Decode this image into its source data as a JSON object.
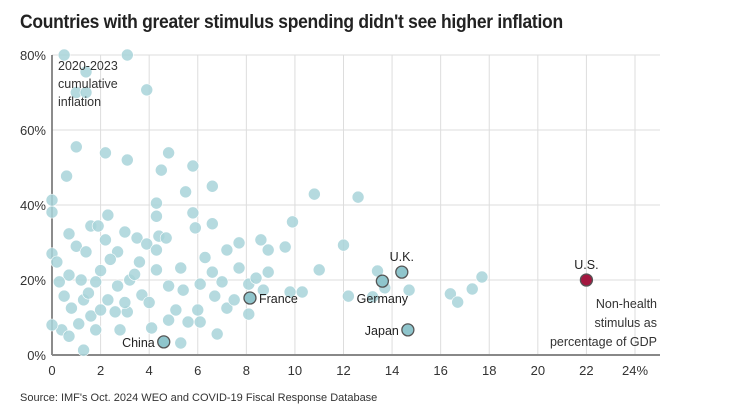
{
  "chart_data": {
    "type": "scatter",
    "title": "Countries with greater stimulus spending didn't see higher inflation",
    "source": "Source: IMF's Oct. 2024 WEO and COVID-19 Fiscal Response Database",
    "xlabel": "Non-health stimulus as percentage of GDP",
    "xlabel_lines": [
      "Non-health",
      "stimulus as",
      "percentage of GDP"
    ],
    "ylabel": "2020-2023 cumulative inflation",
    "ylabel_lines": [
      "2020-2023",
      "cumulative",
      "inflation"
    ],
    "xlim": [
      0,
      24
    ],
    "ylim": [
      0,
      80
    ],
    "xticks": [
      0,
      2,
      4,
      6,
      8,
      10,
      12,
      14,
      16,
      18,
      20,
      22,
      24
    ],
    "xtick_labels": [
      "0",
      "2",
      "4",
      "6",
      "8",
      "10",
      "12",
      "14",
      "16",
      "18",
      "20",
      "22",
      "24%"
    ],
    "yticks": [
      0,
      20,
      40,
      60,
      80
    ],
    "ytick_labels": [
      "0%",
      "20%",
      "40%",
      "60%",
      "80%"
    ],
    "grid": true,
    "colors": {
      "point": "#a8d4d9",
      "highlight": "#8fc5cc",
      "us": "#a3173f",
      "outline": "#555555",
      "grid": "#dddddd",
      "axis": "#888888"
    },
    "points": [
      [
        0.5,
        80
      ],
      [
        3.1,
        80
      ],
      [
        1.4,
        75.5
      ],
      [
        1.0,
        70
      ],
      [
        1.4,
        70
      ],
      [
        3.9,
        70.7
      ],
      [
        1.0,
        55.5
      ],
      [
        2.2,
        53.9
      ],
      [
        3.1,
        52
      ],
      [
        4.8,
        53.9
      ],
      [
        5.8,
        50.4
      ],
      [
        4.5,
        49.3
      ],
      [
        0.6,
        47.7
      ],
      [
        0,
        41.3
      ],
      [
        0,
        38.1
      ],
      [
        5.5,
        43.5
      ],
      [
        6.6,
        45
      ],
      [
        10.8,
        42.9
      ],
      [
        12.6,
        42.1
      ],
      [
        4.3,
        40.5
      ],
      [
        5.8,
        37.9
      ],
      [
        6.6,
        35
      ],
      [
        4.3,
        37
      ],
      [
        5.9,
        33.9
      ],
      [
        9.9,
        35.5
      ],
      [
        8.6,
        30.7
      ],
      [
        7.2,
        28
      ],
      [
        8.9,
        28
      ],
      [
        7.7,
        29.9
      ],
      [
        9.6,
        28.8
      ],
      [
        12,
        29.3
      ],
      [
        11,
        22.7
      ],
      [
        0,
        27
      ],
      [
        0.2,
        24.8
      ],
      [
        0.7,
        32.3
      ],
      [
        1,
        29
      ],
      [
        1.4,
        27.5
      ],
      [
        1.6,
        34.4
      ],
      [
        1.9,
        34.4
      ],
      [
        2.3,
        37.3
      ],
      [
        2.2,
        30.7
      ],
      [
        2.7,
        27.5
      ],
      [
        3,
        32.8
      ],
      [
        3.5,
        31.2
      ],
      [
        3.9,
        29.6
      ],
      [
        4.3,
        28
      ],
      [
        4.4,
        31.7
      ],
      [
        4.7,
        31.2
      ],
      [
        3.6,
        24.8
      ],
      [
        3.2,
        20
      ],
      [
        2.7,
        18.4
      ],
      [
        1.8,
        19.5
      ],
      [
        1.2,
        20
      ],
      [
        0.7,
        21.3
      ],
      [
        0.3,
        19.5
      ],
      [
        0.5,
        15.7
      ],
      [
        0.8,
        12.5
      ],
      [
        1.3,
        14.7
      ],
      [
        1.6,
        10.4
      ],
      [
        1.1,
        8.3
      ],
      [
        0.4,
        6.7
      ],
      [
        0,
        8
      ],
      [
        0.7,
        5
      ],
      [
        1.8,
        6.7
      ],
      [
        1.3,
        1.3
      ],
      [
        2.3,
        14.7
      ],
      [
        2.6,
        11.5
      ],
      [
        3.1,
        11.5
      ],
      [
        2.8,
        6.7
      ],
      [
        3.7,
        16
      ],
      [
        4.1,
        7.2
      ],
      [
        4.8,
        9.3
      ],
      [
        5.1,
        12
      ],
      [
        5.3,
        3.2
      ],
      [
        5.6,
        8.8
      ],
      [
        6.1,
        8.8
      ],
      [
        6.8,
        5.6
      ],
      [
        6,
        12
      ],
      [
        6.7,
        15.7
      ],
      [
        7.2,
        12.5
      ],
      [
        7.5,
        14.7
      ],
      [
        8.1,
        18.9
      ],
      [
        8.4,
        20.5
      ],
      [
        7.7,
        23.2
      ],
      [
        8.7,
        17.3
      ],
      [
        8.9,
        22.1
      ],
      [
        7,
        19.5
      ],
      [
        6.1,
        18.9
      ],
      [
        5.4,
        17.3
      ],
      [
        4.8,
        18.4
      ],
      [
        4.3,
        22.7
      ],
      [
        5.3,
        23.2
      ],
      [
        6.6,
        22.1
      ],
      [
        8.1,
        10.9
      ],
      [
        9.8,
        16.8
      ],
      [
        10.3,
        16.8
      ],
      [
        12.2,
        15.7
      ],
      [
        13.2,
        15.5
      ],
      [
        13.7,
        17.9
      ],
      [
        14.7,
        17.3
      ],
      [
        13.4,
        22.4
      ],
      [
        16.4,
        16.3
      ],
      [
        16.7,
        14.1
      ],
      [
        17.3,
        17.6
      ],
      [
        17.7,
        20.8
      ],
      [
        2.0,
        22.5
      ],
      [
        2.4,
        25.5
      ],
      [
        1.5,
        16.5
      ],
      [
        3.4,
        21.5
      ],
      [
        4.0,
        14.0
      ],
      [
        2.0,
        12.0
      ],
      [
        6.3,
        26.0
      ],
      [
        3.0,
        14.0
      ]
    ],
    "highlighted": [
      {
        "name": "China",
        "x": 4.6,
        "y": 3.5,
        "label_side": "left"
      },
      {
        "name": "France",
        "x": 8.15,
        "y": 15.2,
        "label_side": "right"
      },
      {
        "name": "Germany",
        "x": 13.6,
        "y": 19.7,
        "label_side": "below"
      },
      {
        "name": "U.K.",
        "x": 14.4,
        "y": 22.1,
        "label_side": "above"
      },
      {
        "name": "Japan",
        "x": 14.65,
        "y": 6.7,
        "label_side": "left"
      },
      {
        "name": "U.S.",
        "x": 22,
        "y": 20,
        "label_side": "above",
        "us": true
      }
    ]
  }
}
